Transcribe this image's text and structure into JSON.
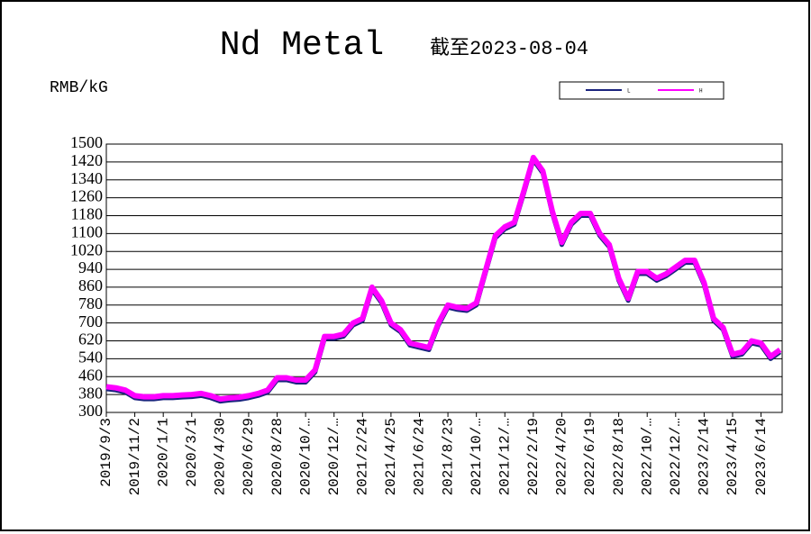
{
  "chart_data": {
    "type": "line",
    "title": "Nd Metal",
    "subtitle": "截至2023-08-04",
    "y_label": "RMB/kG",
    "categories": [
      "2019/9/3",
      null,
      null,
      "2019/11/2",
      null,
      null,
      "2020/1/1",
      null,
      null,
      "2020/3/1",
      null,
      null,
      "2020/4/30",
      null,
      null,
      "2020/6/29",
      null,
      null,
      "2020/8/28",
      null,
      null,
      "2020/10/…",
      null,
      null,
      "2020/12/…",
      null,
      null,
      "2021/2/24",
      null,
      null,
      "2021/4/25",
      null,
      null,
      "2021/6/24",
      null,
      null,
      "2021/8/23",
      null,
      null,
      "2021/10/…",
      null,
      null,
      "2021/12/…",
      null,
      null,
      "2022/2/19",
      null,
      null,
      "2022/4/20",
      null,
      null,
      "2022/6/19",
      null,
      null,
      "2022/8/18",
      null,
      null,
      "2022/10/…",
      null,
      null,
      "2022/12/…",
      null,
      null,
      "2023/2/14",
      null,
      null,
      "2023/4/15",
      null,
      null,
      "2023/6/14",
      null,
      null
    ],
    "series": [
      {
        "name": "L",
        "color": "#1a237e",
        "values": [
          405,
          400,
          390,
          365,
          360,
          360,
          365,
          365,
          368,
          370,
          375,
          365,
          350,
          355,
          358,
          365,
          375,
          390,
          445,
          445,
          435,
          435,
          480,
          630,
          630,
          640,
          690,
          710,
          850,
          790,
          690,
          660,
          600,
          590,
          580,
          690,
          770,
          760,
          755,
          780,
          930,
          1080,
          1120,
          1140,
          1280,
          1430,
          1370,
          1190,
          1050,
          1140,
          1180,
          1180,
          1090,
          1040,
          890,
          800,
          920,
          920,
          890,
          910,
          940,
          970,
          970,
          870,
          710,
          670,
          550,
          560,
          610,
          600,
          540,
          570
        ]
      },
      {
        "name": "H",
        "color": "#ff00ff",
        "values": [
          415,
          410,
          400,
          375,
          370,
          370,
          375,
          375,
          378,
          380,
          385,
          375,
          360,
          365,
          368,
          375,
          385,
          400,
          455,
          455,
          445,
          445,
          490,
          640,
          640,
          650,
          700,
          720,
          860,
          800,
          700,
          670,
          610,
          600,
          590,
          700,
          780,
          770,
          765,
          790,
          940,
          1090,
          1130,
          1150,
          1290,
          1440,
          1380,
          1200,
          1060,
          1150,
          1190,
          1190,
          1100,
          1050,
          900,
          810,
          930,
          930,
          900,
          920,
          950,
          980,
          980,
          880,
          720,
          680,
          560,
          570,
          620,
          610,
          550,
          580
        ]
      }
    ],
    "ylim": [
      300,
      1500
    ],
    "yticks": [
      300,
      380,
      460,
      540,
      620,
      700,
      780,
      860,
      940,
      1020,
      1100,
      1180,
      1260,
      1340,
      1420,
      1500
    ],
    "grid": true
  }
}
